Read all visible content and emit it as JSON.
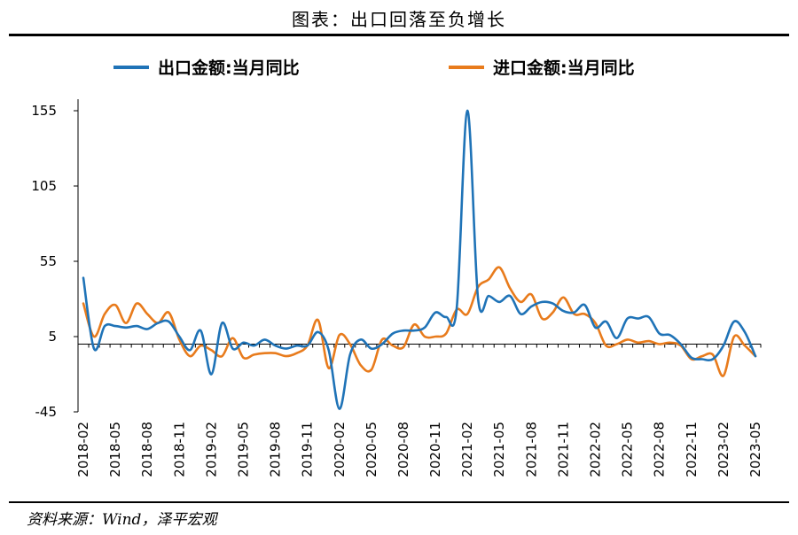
{
  "header": {
    "title": "图表：出口回落至负增长"
  },
  "footer": {
    "source": "资料来源：Wind，泽平宏观"
  },
  "colors": {
    "export": "#1f73b7",
    "import": "#e87b1c",
    "axis": "#000000"
  },
  "chart_data": {
    "type": "line",
    "title": "图表：出口回落至负增长",
    "legend_position": "top",
    "grid": false,
    "ylim": [
      -45,
      155
    ],
    "yticks": [
      -45,
      5,
      55,
      105,
      155
    ],
    "x_tick_labels": [
      "2018-02",
      "2018-05",
      "2018-08",
      "2018-11",
      "2019-02",
      "2019-05",
      "2019-08",
      "2019-11",
      "2020-02",
      "2020-05",
      "2020-08",
      "2020-11",
      "2021-02",
      "2021-05",
      "2021-08",
      "2021-11",
      "2022-02",
      "2022-05",
      "2022-08",
      "2022-11",
      "2023-02",
      "2023-05"
    ],
    "x": [
      "2018-02",
      "2018-03",
      "2018-04",
      "2018-05",
      "2018-06",
      "2018-07",
      "2018-08",
      "2018-09",
      "2018-10",
      "2018-11",
      "2018-12",
      "2019-01",
      "2019-02",
      "2019-03",
      "2019-04",
      "2019-05",
      "2019-06",
      "2019-07",
      "2019-08",
      "2019-09",
      "2019-10",
      "2019-11",
      "2019-12",
      "2020-01",
      "2020-02",
      "2020-03",
      "2020-04",
      "2020-05",
      "2020-06",
      "2020-07",
      "2020-08",
      "2020-09",
      "2020-10",
      "2020-11",
      "2020-12",
      "2021-01",
      "2021-02",
      "2021-03",
      "2021-04",
      "2021-05",
      "2021-06",
      "2021-07",
      "2021-08",
      "2021-09",
      "2021-10",
      "2021-11",
      "2021-12",
      "2022-01",
      "2022-02",
      "2022-03",
      "2022-04",
      "2022-05",
      "2022-06",
      "2022-07",
      "2022-08",
      "2022-09",
      "2022-10",
      "2022-11",
      "2022-12",
      "2023-01",
      "2023-02",
      "2023-03",
      "2023-04",
      "2023-05"
    ],
    "series": [
      {
        "name": "出口金额:当月同比",
        "color": "#1f73b7",
        "values": [
          44,
          -3,
          12,
          12,
          11,
          12,
          10,
          14,
          15,
          5,
          -4,
          9,
          -20,
          14,
          -3,
          1,
          -1,
          3,
          -1,
          -3,
          -1,
          -1,
          8,
          -4,
          -43,
          -7,
          3,
          -3,
          0,
          7,
          9,
          9,
          11,
          21,
          18,
          24,
          155,
          30,
          32,
          28,
          32,
          20,
          25,
          28,
          27,
          22,
          21,
          26,
          11,
          15,
          4,
          17,
          17,
          18,
          7,
          6,
          0,
          -9,
          -10,
          -10,
          -1,
          15,
          8,
          -8
        ]
      },
      {
        "name": "进口金额:当月同比",
        "color": "#e87b1c",
        "values": [
          27,
          5,
          20,
          26,
          14,
          27,
          20,
          14,
          21,
          3,
          -8,
          -1,
          -4,
          -8,
          4,
          -9,
          -7,
          -6,
          -6,
          -8,
          -6,
          -1,
          16,
          -16,
          6,
          0,
          -14,
          -17,
          3,
          -1,
          -2,
          13,
          5,
          5,
          7,
          23,
          20,
          38,
          43,
          51,
          37,
          28,
          33,
          17,
          21,
          31,
          20,
          20,
          14,
          -1,
          0,
          3,
          1,
          2,
          0,
          1,
          -1,
          -10,
          -8,
          -7,
          -21,
          5,
          -1,
          -8
        ]
      }
    ]
  }
}
